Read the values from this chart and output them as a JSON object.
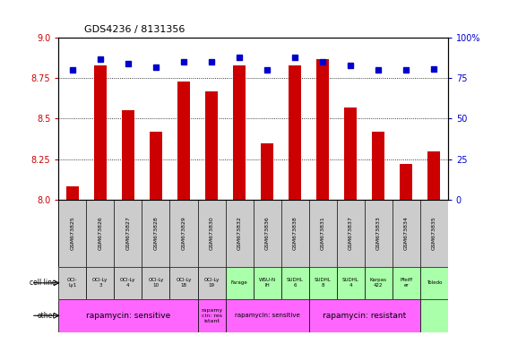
{
  "title": "GDS4236 / 8131356",
  "samples": [
    "GSM673825",
    "GSM673826",
    "GSM673827",
    "GSM673828",
    "GSM673829",
    "GSM673830",
    "GSM673832",
    "GSM673836",
    "GSM673838",
    "GSM673831",
    "GSM673837",
    "GSM673833",
    "GSM673834",
    "GSM673835"
  ],
  "bar_values": [
    8.08,
    8.83,
    8.55,
    8.42,
    8.73,
    8.67,
    8.83,
    8.35,
    8.83,
    8.87,
    8.57,
    8.42,
    8.22,
    8.3
  ],
  "dot_values": [
    80,
    87,
    84,
    82,
    85,
    85,
    88,
    80,
    88,
    85,
    83,
    80,
    80,
    81
  ],
  "ylim_left": [
    8.0,
    9.0
  ],
  "ylim_right": [
    0,
    100
  ],
  "yticks_left": [
    8.0,
    8.25,
    8.5,
    8.75,
    9.0
  ],
  "yticks_right": [
    0,
    25,
    50,
    75,
    100
  ],
  "bar_color": "#cc0000",
  "dot_color": "#0000cc",
  "cell_lines": [
    "OCI-\nLy1",
    "OCI-Ly\n3",
    "OCI-Ly\n4",
    "OCI-Ly\n10",
    "OCI-Ly\n18",
    "OCI-Ly\n19",
    "Farage",
    "WSU-N\nIH",
    "SUDHL\n6",
    "SUDHL\n8",
    "SUDHL\n4",
    "Karpas\n422",
    "Pfeiff\ner",
    "Toledo"
  ],
  "cell_line_bg": [
    "#cccccc",
    "#cccccc",
    "#cccccc",
    "#cccccc",
    "#cccccc",
    "#cccccc",
    "#aaffaa",
    "#aaffaa",
    "#aaffaa",
    "#aaffaa",
    "#aaffaa",
    "#aaffaa",
    "#aaffaa",
    "#aaffaa"
  ],
  "rapamycin_groups": [
    {
      "start": 0,
      "end": 5,
      "label": "rapamycin: sensitive",
      "color": "#ff66ff",
      "fontsize": 6.5
    },
    {
      "start": 5,
      "end": 6,
      "label": "rapamy\ncin: res\nistant",
      "color": "#ff66ff",
      "fontsize": 4.5
    },
    {
      "start": 6,
      "end": 9,
      "label": "rapamycin: sensitive",
      "color": "#ff66ff",
      "fontsize": 5.0
    },
    {
      "start": 9,
      "end": 13,
      "label": "rapamycin: resistant",
      "color": "#ff66ff",
      "fontsize": 6.5
    },
    {
      "start": 13,
      "end": 14,
      "label": "",
      "color": "#aaffaa",
      "fontsize": 5
    }
  ],
  "bg_color": "#ffffff",
  "ylabel_left_color": "#cc0000",
  "ylabel_right_color": "#0000cc",
  "grid_dotted_at": [
    8.25,
    8.5,
    8.75
  ],
  "sample_label_bg": "#cccccc"
}
